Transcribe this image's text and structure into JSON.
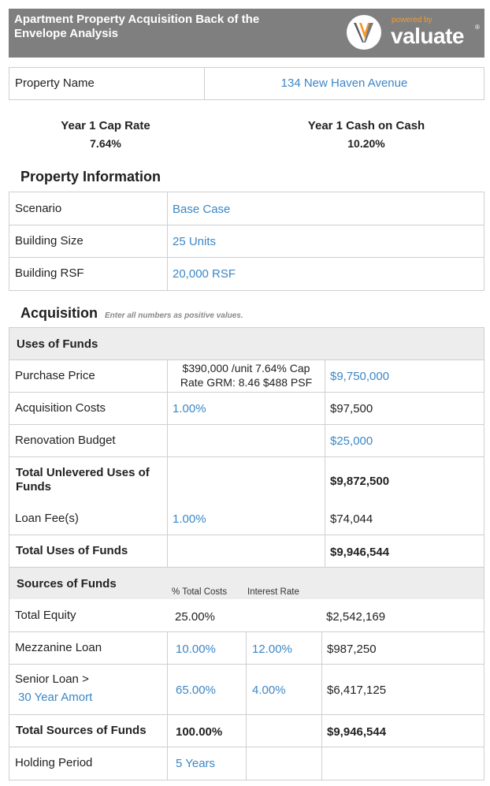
{
  "header": {
    "title": "Apartment Property Acquisition Back of the Envelope Analysis",
    "powered_by": "powered by",
    "brand": "valuate",
    "reg_mark": "®"
  },
  "property_name": {
    "label": "Property Name",
    "value": "134 New Haven Avenue"
  },
  "metrics": {
    "cap_rate_label": "Year 1 Cap Rate",
    "cap_rate_value": "7.64%",
    "cash_on_cash_label": "Year 1 Cash on Cash",
    "cash_on_cash_value": "10.20%"
  },
  "property_information": {
    "title": "Property Information",
    "rows": [
      {
        "label": "Scenario",
        "value": "Base Case"
      },
      {
        "label": "Building Size",
        "value": "25 Units"
      },
      {
        "label": "Building RSF",
        "value": "20,000 RSF"
      }
    ]
  },
  "acquisition": {
    "title": "Acquisition",
    "note": "Enter all numbers as positive values.",
    "uses_header": "Uses of Funds",
    "purchase_price": {
      "label": "Purchase Price",
      "stats_line1": "$390,000 /unit  7.64% Cap",
      "stats_line2": "Rate GRM:  8.46  $488 PSF",
      "value": "$9,750,000"
    },
    "acquisition_costs": {
      "label": "Acquisition Costs",
      "pct": "1.00%",
      "value": "$97,500"
    },
    "renovation_budget": {
      "label": "Renovation Budget",
      "value": "$25,000"
    },
    "total_unlevered": {
      "label_line1": "Total Unlevered Uses of",
      "label_line2": "Funds",
      "value": "$9,872,500"
    },
    "loan_fees": {
      "label": "Loan Fee(s)",
      "pct": "1.00%",
      "value": "$74,044"
    },
    "total_uses": {
      "label": "Total Uses of Funds",
      "value": "$9,946,544"
    },
    "sources_header": "Sources of Funds",
    "col_pct_total": "% Total Costs",
    "col_interest": "Interest Rate",
    "total_equity": {
      "label": "Total Equity",
      "pct": "25.00%",
      "value": "$2,542,169"
    },
    "mezzanine": {
      "label": "Mezzanine Loan",
      "pct": "10.00%",
      "rate": "12.00%",
      "value": "$987,250"
    },
    "senior": {
      "label": "Senior Loan >",
      "amort": "30 Year Amort",
      "pct": "65.00%",
      "rate": "4.00%",
      "value": "$6,417,125"
    },
    "total_sources": {
      "label": "Total Sources of Funds",
      "pct": "100.00%",
      "value": "$9,946,544"
    },
    "holding_period": {
      "label": "Holding Period",
      "value": "5 Years"
    }
  },
  "colors": {
    "header_bg": "#7f7f7f",
    "accent_orange": "#f59a2c",
    "link_blue": "#3b87c6",
    "section_gray": "#ededed",
    "border": "#cfcfcf"
  }
}
